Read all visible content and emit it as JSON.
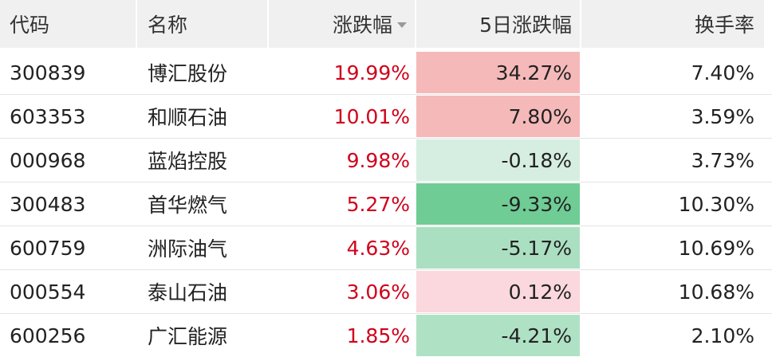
{
  "table": {
    "header": [
      "代码",
      "名称",
      "涨跌幅",
      "5日涨跌幅",
      "换手率"
    ],
    "rows": [
      [
        "300839",
        "博汇股份",
        "19.99%",
        "34.27%",
        "7.40%"
      ],
      [
        "603353",
        "和顺石油",
        "10.01%",
        "7.80%",
        "3.59%"
      ],
      [
        "000968",
        "蓝焰控股",
        "9.98%",
        "-0.18%",
        "3.73%"
      ],
      [
        "300483",
        "首华燃气",
        "5.27%",
        "-9.33%",
        "10.30%"
      ],
      [
        "600759",
        "洲际油气",
        "4.63%",
        "-5.17%",
        "10.69%"
      ],
      [
        "000554",
        "泰山石油",
        "3.06%",
        "0.12%",
        "10.68%"
      ],
      [
        "600256",
        "广汇能源",
        "1.85%",
        "-4.21%",
        "2.10%"
      ]
    ],
    "change_color": "#d0021b",
    "heat_colors": [
      "#f5b9b9",
      "#f5b9b9",
      "#d6eee1",
      "#6fcc94",
      "#abdfc2",
      "#fad8dd",
      "#afe1c5"
    ]
  }
}
